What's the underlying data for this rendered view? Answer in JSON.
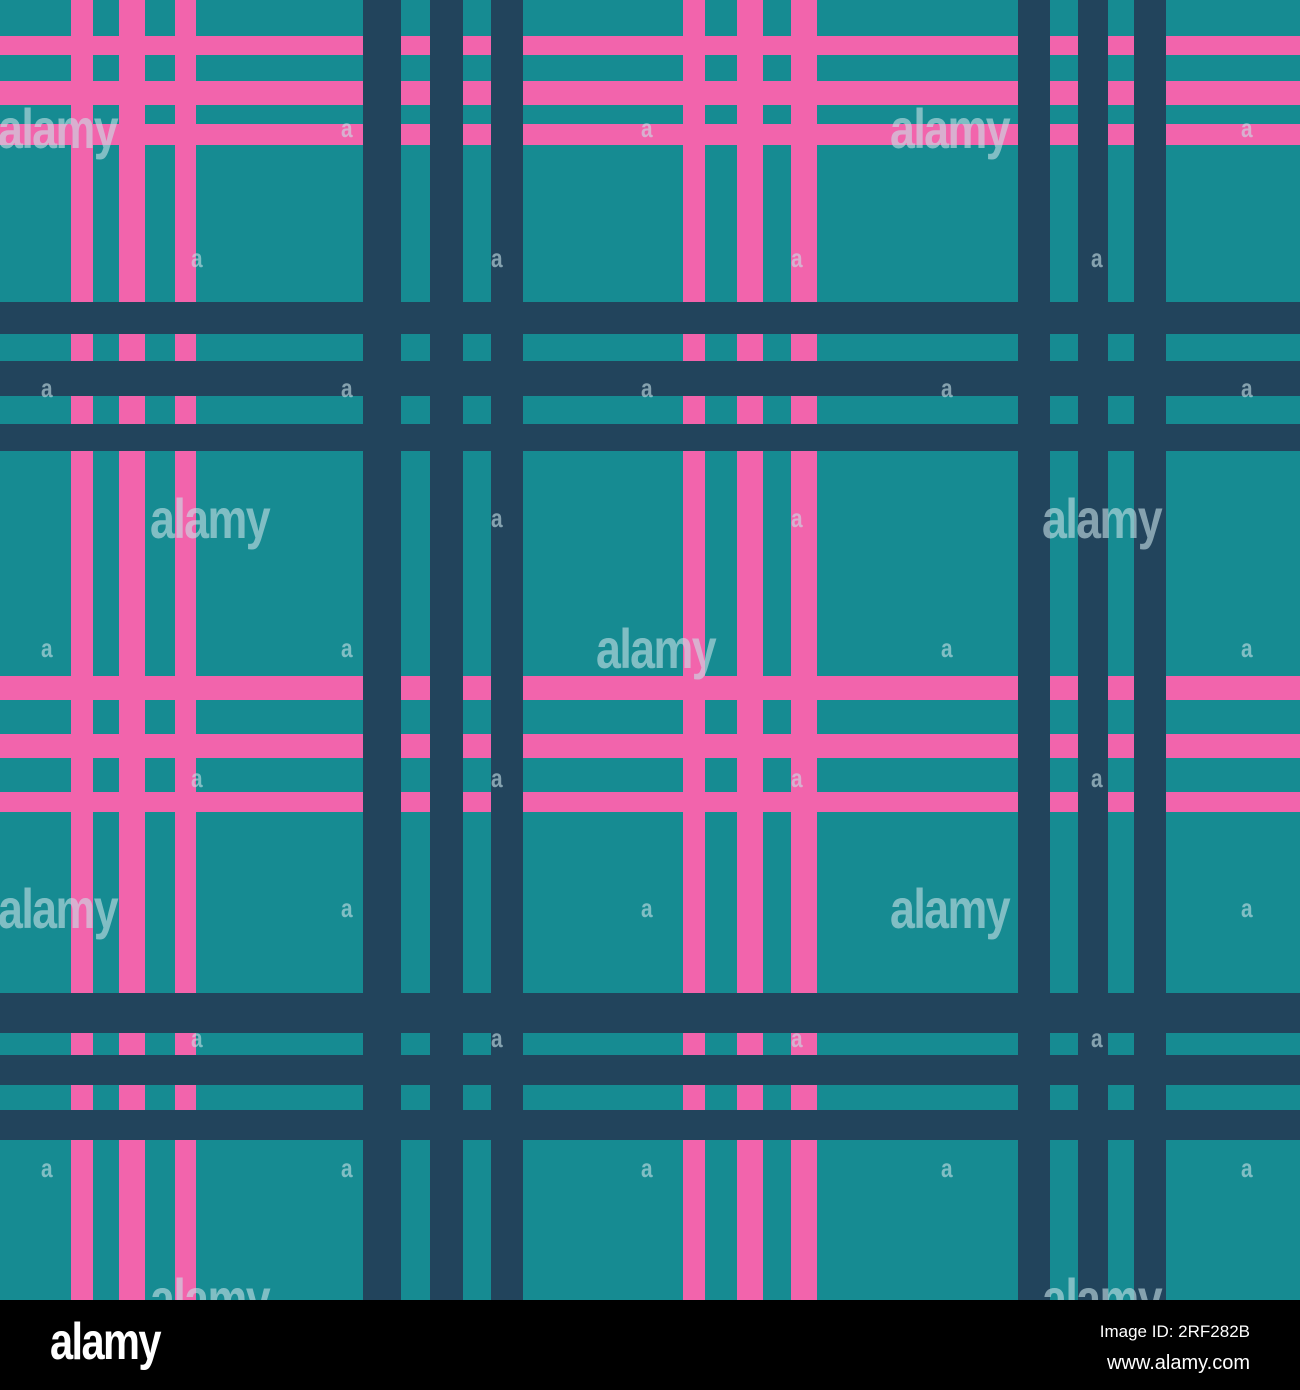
{
  "colors": {
    "background": "#168b92",
    "pink_stripe": "#f264ac",
    "navy_stripe": "#22445c",
    "footer": "#000000"
  },
  "watermark": {
    "logo_text": "alamy",
    "mark_text": "a"
  },
  "footer": {
    "logo": "alamy",
    "image_id": "Image ID: 2RF282B",
    "website": "www.alamy.com"
  }
}
